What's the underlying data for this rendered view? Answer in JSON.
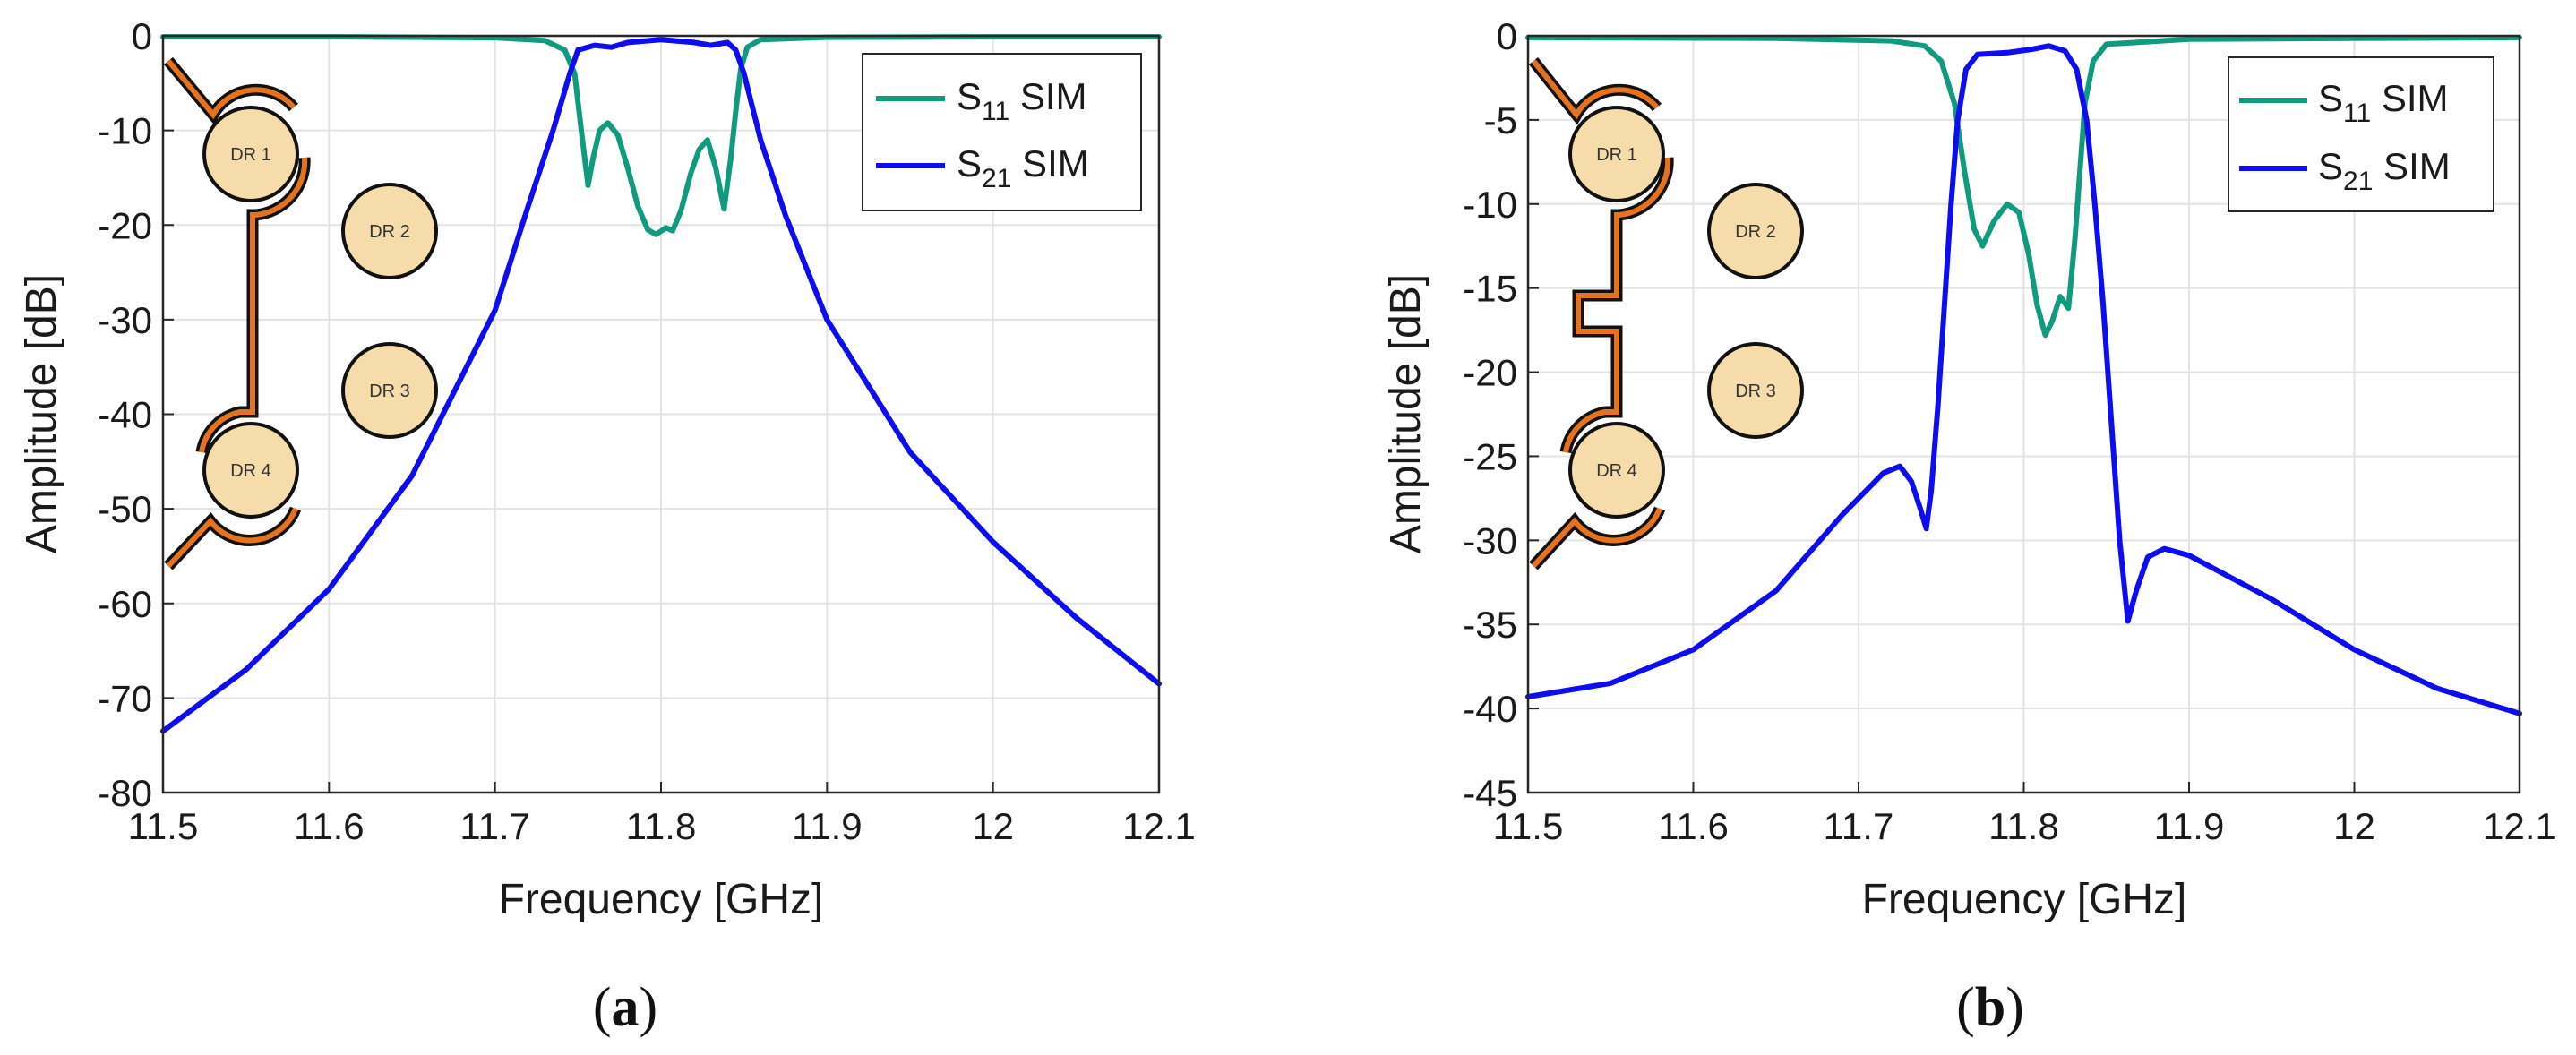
{
  "chart_data": [
    {
      "type": "line",
      "id": "a",
      "caption": "a",
      "xlabel": "Frequency [GHz]",
      "ylabel": "Amplitude [dB]",
      "xlim": [
        11.5,
        12.1
      ],
      "ylim": [
        -80,
        0
      ],
      "xticks": [
        11.5,
        11.6,
        11.7,
        11.8,
        11.9,
        12,
        12.1
      ],
      "xtick_labels": [
        "11.5",
        "11.6",
        "11.7",
        "11.8",
        "11.9",
        "12",
        "12.1"
      ],
      "yticks": [
        0,
        -10,
        -20,
        -30,
        -40,
        -50,
        -60,
        -70,
        -80
      ],
      "ytick_labels": [
        "0",
        "-10",
        "-20",
        "-30",
        "-40",
        "-50",
        "-60",
        "-70",
        "-80"
      ],
      "grid": true,
      "legend_position": "top-right",
      "series": [
        {
          "name": "S11 SIM",
          "label_main": "S",
          "label_sub": "11",
          "label_tail": " SIM",
          "color": "#109a7e",
          "points": [
            [
              11.5,
              -0.1
            ],
            [
              11.6,
              -0.1
            ],
            [
              11.7,
              -0.2
            ],
            [
              11.73,
              -0.5
            ],
            [
              11.742,
              -1.5
            ],
            [
              11.748,
              -4
            ],
            [
              11.752,
              -10
            ],
            [
              11.756,
              -15.8
            ],
            [
              11.759,
              -13
            ],
            [
              11.763,
              -10
            ],
            [
              11.768,
              -9.2
            ],
            [
              11.774,
              -10.5
            ],
            [
              11.78,
              -14
            ],
            [
              11.786,
              -18
            ],
            [
              11.792,
              -20.5
            ],
            [
              11.797,
              -21
            ],
            [
              11.803,
              -20.3
            ],
            [
              11.807,
              -20.6
            ],
            [
              11.812,
              -18.5
            ],
            [
              11.818,
              -14.5
            ],
            [
              11.823,
              -12
            ],
            [
              11.828,
              -11
            ],
            [
              11.833,
              -14
            ],
            [
              11.838,
              -18.3
            ],
            [
              11.842,
              -13
            ],
            [
              11.845,
              -8
            ],
            [
              11.848,
              -3.5
            ],
            [
              11.852,
              -1.2
            ],
            [
              11.86,
              -0.4
            ],
            [
              11.9,
              -0.15
            ],
            [
              12.0,
              -0.1
            ],
            [
              12.1,
              -0.1
            ]
          ]
        },
        {
          "name": "S21 SIM",
          "label_main": "S",
          "label_sub": "21",
          "label_tail": " SIM",
          "color": "#0d0df0",
          "points": [
            [
              11.5,
              -73.5
            ],
            [
              11.55,
              -67
            ],
            [
              11.6,
              -58.5
            ],
            [
              11.65,
              -46.5
            ],
            [
              11.7,
              -29
            ],
            [
              11.72,
              -18
            ],
            [
              11.735,
              -10
            ],
            [
              11.745,
              -4
            ],
            [
              11.75,
              -1.5
            ],
            [
              11.76,
              -1
            ],
            [
              11.77,
              -1.2
            ],
            [
              11.78,
              -0.7
            ],
            [
              11.8,
              -0.4
            ],
            [
              11.82,
              -0.7
            ],
            [
              11.83,
              -1
            ],
            [
              11.84,
              -0.7
            ],
            [
              11.845,
              -1.5
            ],
            [
              11.85,
              -4
            ],
            [
              11.86,
              -11
            ],
            [
              11.875,
              -19
            ],
            [
              11.9,
              -30
            ],
            [
              11.95,
              -44
            ],
            [
              12.0,
              -53.5
            ],
            [
              12.05,
              -61.5
            ],
            [
              12.1,
              -68.5
            ]
          ]
        }
      ],
      "inset": {
        "resonator_labels": [
          "DR 1",
          "DR 2",
          "DR 3",
          "DR 4"
        ]
      }
    },
    {
      "type": "line",
      "id": "b",
      "caption": "b",
      "xlabel": "Frequency [GHz]",
      "ylabel": "Amplitude [dB]",
      "xlim": [
        11.5,
        12.1
      ],
      "ylim": [
        -45,
        0
      ],
      "xticks": [
        11.5,
        11.6,
        11.7,
        11.8,
        11.9,
        12,
        12.1
      ],
      "xtick_labels": [
        "11.5",
        "11.6",
        "11.7",
        "11.8",
        "11.9",
        "12",
        "12.1"
      ],
      "yticks": [
        0,
        -5,
        -10,
        -15,
        -20,
        -25,
        -30,
        -35,
        -40,
        -45
      ],
      "ytick_labels": [
        "0",
        "-5",
        "-10",
        "-15",
        "-20",
        "-25",
        "-30",
        "-35",
        "-40",
        "-45"
      ],
      "grid": true,
      "legend_position": "top-right",
      "series": [
        {
          "name": "S11 SIM",
          "label_main": "S",
          "label_sub": "11",
          "label_tail": " SIM",
          "color": "#109a7e",
          "points": [
            [
              11.5,
              -0.1
            ],
            [
              11.65,
              -0.15
            ],
            [
              11.72,
              -0.3
            ],
            [
              11.74,
              -0.6
            ],
            [
              11.75,
              -1.5
            ],
            [
              11.758,
              -4
            ],
            [
              11.764,
              -8
            ],
            [
              11.77,
              -11.5
            ],
            [
              11.775,
              -12.5
            ],
            [
              11.782,
              -11
            ],
            [
              11.79,
              -10
            ],
            [
              11.797,
              -10.5
            ],
            [
              11.803,
              -13
            ],
            [
              11.808,
              -16
            ],
            [
              11.813,
              -17.8
            ],
            [
              11.817,
              -17
            ],
            [
              11.822,
              -15.5
            ],
            [
              11.827,
              -16.2
            ],
            [
              11.831,
              -12
            ],
            [
              11.834,
              -8
            ],
            [
              11.837,
              -4
            ],
            [
              11.842,
              -1.5
            ],
            [
              11.85,
              -0.5
            ],
            [
              11.9,
              -0.2
            ],
            [
              12.0,
              -0.15
            ],
            [
              12.1,
              -0.1
            ]
          ]
        },
        {
          "name": "S21 SIM",
          "label_main": "S",
          "label_sub": "21",
          "label_tail": " SIM",
          "color": "#0d0df0",
          "points": [
            [
              11.5,
              -39.3
            ],
            [
              11.55,
              -38.5
            ],
            [
              11.6,
              -36.5
            ],
            [
              11.65,
              -33
            ],
            [
              11.69,
              -28.5
            ],
            [
              11.715,
              -26
            ],
            [
              11.725,
              -25.6
            ],
            [
              11.732,
              -26.5
            ],
            [
              11.737,
              -28
            ],
            [
              11.741,
              -29.3
            ],
            [
              11.744,
              -27
            ],
            [
              11.748,
              -22
            ],
            [
              11.752,
              -16
            ],
            [
              11.756,
              -10
            ],
            [
              11.76,
              -5
            ],
            [
              11.765,
              -2
            ],
            [
              11.772,
              -1.1
            ],
            [
              11.79,
              -1
            ],
            [
              11.805,
              -0.8
            ],
            [
              11.815,
              -0.6
            ],
            [
              11.825,
              -0.9
            ],
            [
              11.832,
              -2
            ],
            [
              11.838,
              -5
            ],
            [
              11.843,
              -10
            ],
            [
              11.848,
              -16
            ],
            [
              11.853,
              -23
            ],
            [
              11.858,
              -30
            ],
            [
              11.863,
              -34.8
            ],
            [
              11.868,
              -33
            ],
            [
              11.875,
              -31
            ],
            [
              11.885,
              -30.5
            ],
            [
              11.9,
              -30.9
            ],
            [
              11.95,
              -33.5
            ],
            [
              12.0,
              -36.5
            ],
            [
              12.05,
              -38.8
            ],
            [
              12.1,
              -40.3
            ]
          ]
        }
      ],
      "inset": {
        "resonator_labels": [
          "DR 1",
          "DR 2",
          "DR 3",
          "DR 4"
        ]
      }
    }
  ]
}
